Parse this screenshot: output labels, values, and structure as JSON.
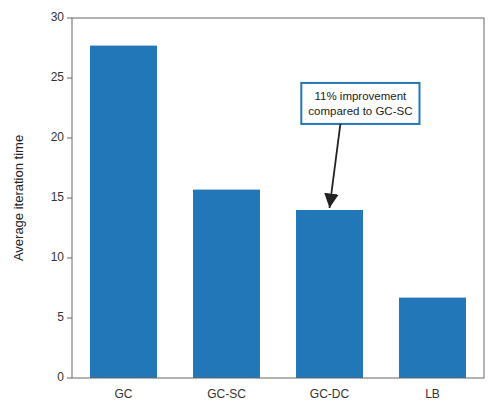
{
  "chart_data": {
    "type": "bar",
    "categories": [
      "GC",
      "GC-SC",
      "GC-DC",
      "LB"
    ],
    "values": [
      27.7,
      15.7,
      14.0,
      6.7
    ],
    "color": "#2277b8",
    "ylabel": "Average iteration time",
    "ylim": [
      0,
      30
    ],
    "yticks": [
      0,
      5,
      10,
      15,
      20,
      25,
      30
    ],
    "grid": false,
    "annotations": [
      {
        "text": "11% improvement\ncompared to GC-SC",
        "x": "GC-DC"
      }
    ]
  }
}
